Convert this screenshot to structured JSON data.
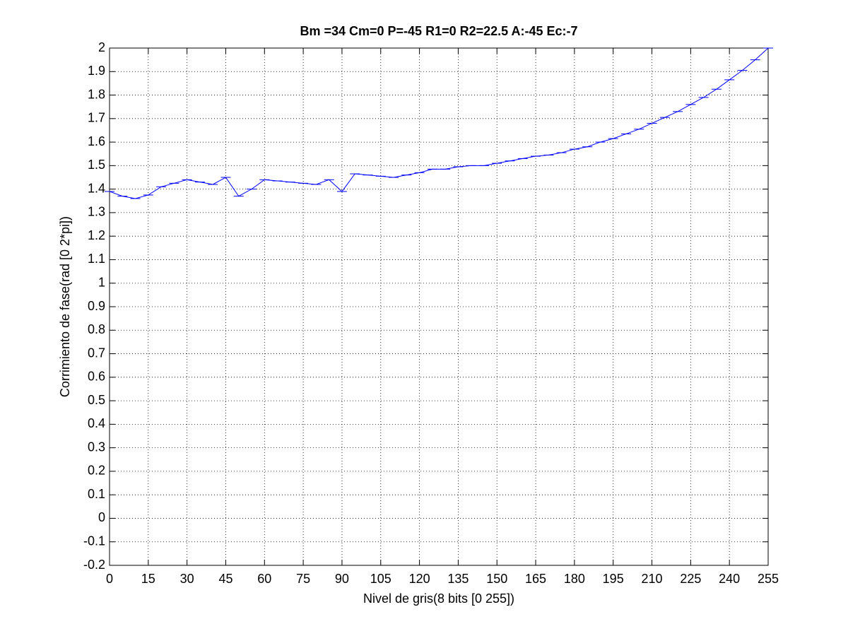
{
  "chart_data": {
    "type": "line",
    "title": "Bm =34  Cm=0  P=-45  R1=0  R2=22.5  A:-45  Ec:-7",
    "x_label": "Nivel de gris(8 bits [0 255])",
    "y_label": "Corrimiento de fase(rad [0 2*pi])",
    "x": [
      0,
      5,
      10,
      15,
      20,
      25,
      30,
      35,
      40,
      45,
      50,
      55,
      60,
      65,
      70,
      75,
      80,
      85,
      90,
      95,
      100,
      105,
      110,
      115,
      120,
      125,
      130,
      135,
      140,
      145,
      150,
      155,
      160,
      165,
      170,
      175,
      180,
      185,
      190,
      195,
      200,
      205,
      210,
      215,
      220,
      225,
      230,
      235,
      240,
      245,
      250,
      255
    ],
    "values": [
      1.39,
      1.37,
      1.36,
      1.375,
      1.41,
      1.425,
      1.44,
      1.43,
      1.42,
      1.45,
      1.37,
      1.4,
      1.44,
      1.435,
      1.43,
      1.425,
      1.42,
      1.44,
      1.39,
      1.465,
      1.46,
      1.455,
      1.45,
      1.46,
      1.47,
      1.485,
      1.485,
      1.495,
      1.5,
      1.5,
      1.51,
      1.52,
      1.53,
      1.54,
      1.545,
      1.555,
      1.57,
      1.58,
      1.6,
      1.615,
      1.635,
      1.655,
      1.68,
      1.705,
      1.73,
      1.76,
      1.79,
      1.825,
      1.865,
      1.905,
      1.95,
      2.0
    ],
    "color": "#0000ff",
    "xlim": [
      0,
      255
    ],
    "xticks": [
      0,
      15,
      30,
      45,
      60,
      75,
      90,
      105,
      120,
      135,
      150,
      165,
      180,
      195,
      210,
      225,
      240,
      255
    ],
    "ylim": [
      -0.2,
      2
    ],
    "yticks": [
      -0.2,
      -0.1,
      0,
      0.1,
      0.2,
      0.3,
      0.4,
      0.5,
      0.6,
      0.7,
      0.8,
      0.9,
      1,
      1.1,
      1.2,
      1.3,
      1.4,
      1.5,
      1.6,
      1.7,
      1.8,
      1.9,
      2
    ],
    "grid": true
  }
}
